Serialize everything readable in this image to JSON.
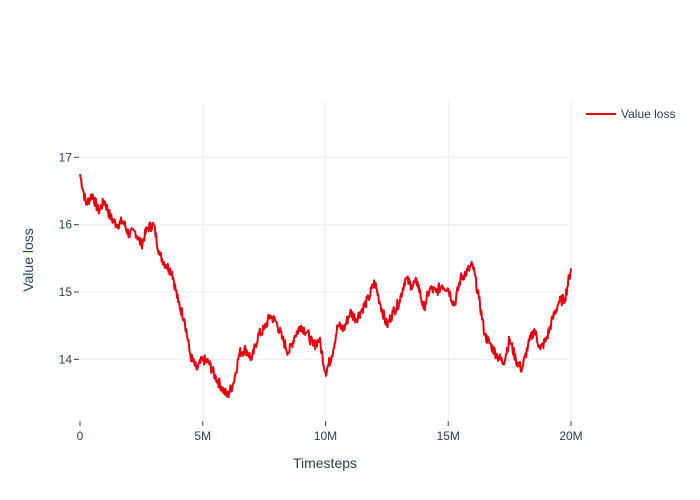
{
  "chart_data": {
    "type": "line",
    "xlabel": "Timesteps",
    "ylabel": "Value loss",
    "xlim": [
      0,
      20000000
    ],
    "ylim": [
      13.1,
      17.85
    ],
    "x_ticks": [
      0,
      5000000,
      10000000,
      15000000,
      20000000
    ],
    "x_tick_labels": [
      "0",
      "5M",
      "10M",
      "15M",
      "20M"
    ],
    "y_ticks": [
      14,
      15,
      16,
      17
    ],
    "y_tick_labels": [
      "14",
      "15",
      "16",
      "17"
    ],
    "grid": true,
    "legend": "top-right",
    "series": [
      {
        "name": "Value loss",
        "color": "#e6000f",
        "x": [
          0,
          250000,
          500000,
          750000,
          1000000,
          1250000,
          1500000,
          1750000,
          2000000,
          2250000,
          2500000,
          2750000,
          3000000,
          3250000,
          3500000,
          3750000,
          4000000,
          4250000,
          4500000,
          4750000,
          5000000,
          5250000,
          5500000,
          5750000,
          6000000,
          6250000,
          6500000,
          6750000,
          7000000,
          7250000,
          7500000,
          7750000,
          8000000,
          8250000,
          8500000,
          8750000,
          9000000,
          9250000,
          9500000,
          9750000,
          10000000,
          10250000,
          10500000,
          10750000,
          11000000,
          11250000,
          11500000,
          11750000,
          12000000,
          12250000,
          12500000,
          12750000,
          13000000,
          13250000,
          13500000,
          13750000,
          14000000,
          14250000,
          14500000,
          14750000,
          15000000,
          15250000,
          15500000,
          15750000,
          16000000,
          16250000,
          16500000,
          16750000,
          17000000,
          17250000,
          17500000,
          17750000,
          18000000,
          18250000,
          18500000,
          18750000,
          19000000,
          19250000,
          19500000,
          19750000,
          20000000
        ],
        "y": [
          16.75,
          16.3,
          16.45,
          16.2,
          16.35,
          16.1,
          16.0,
          16.05,
          15.85,
          15.9,
          15.7,
          15.95,
          16.0,
          15.55,
          15.4,
          15.3,
          14.85,
          14.6,
          14.05,
          13.85,
          14.0,
          13.95,
          13.75,
          13.6,
          13.45,
          13.65,
          14.1,
          14.15,
          14.0,
          14.35,
          14.45,
          14.65,
          14.55,
          14.3,
          14.1,
          14.35,
          14.5,
          14.4,
          14.2,
          14.3,
          13.8,
          14.05,
          14.5,
          14.45,
          14.7,
          14.6,
          14.75,
          14.9,
          15.15,
          14.8,
          14.5,
          14.7,
          14.85,
          15.2,
          15.1,
          15.15,
          14.75,
          15.05,
          15.0,
          15.1,
          15.05,
          14.8,
          15.2,
          15.3,
          15.4,
          14.9,
          14.35,
          14.2,
          14.05,
          13.95,
          14.3,
          14.0,
          13.85,
          14.2,
          14.45,
          14.15,
          14.3,
          14.6,
          14.85,
          14.9,
          15.35
        ]
      }
    ]
  }
}
